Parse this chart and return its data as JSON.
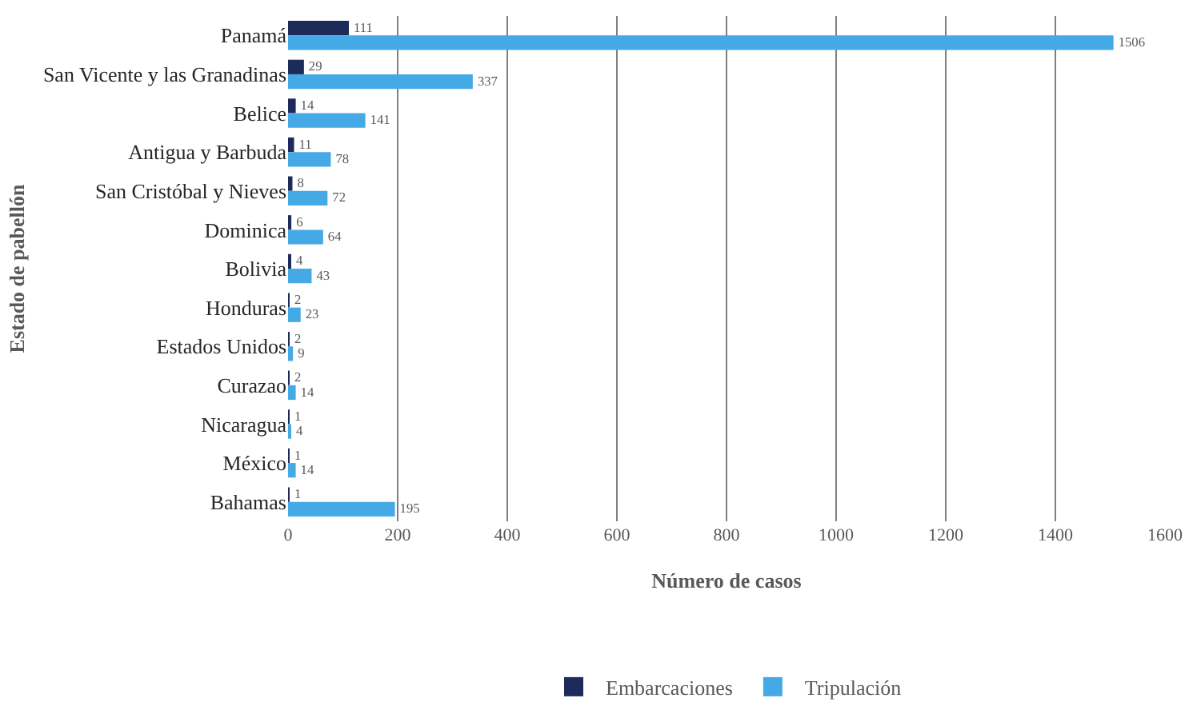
{
  "chart_data": {
    "type": "bar",
    "orientation": "horizontal",
    "xlabel": "Número de casos",
    "ylabel": "Estado de pabellón",
    "categories": [
      "Panamá",
      "San Vicente y las Granadinas",
      "Belice",
      "Antigua y Barbuda",
      "San Cristóbal y Nieves",
      "Dominica",
      "Bolivia",
      "Honduras",
      "Estados Unidos",
      "Curazao",
      "Nicaragua",
      "México",
      "Bahamas"
    ],
    "series": [
      {
        "name": "Embarcaciones",
        "color": "#1c2b5a",
        "values": [
          111,
          29,
          14,
          11,
          8,
          6,
          4,
          2,
          2,
          2,
          1,
          1,
          1
        ]
      },
      {
        "name": "Tripulación",
        "color": "#45a9e6",
        "values": [
          1506,
          337,
          141,
          78,
          72,
          64,
          43,
          23,
          9,
          14,
          4,
          14,
          195
        ]
      }
    ],
    "xlim": [
      0,
      1600
    ],
    "xticks": [
      0,
      200,
      400,
      600,
      800,
      1000,
      1200,
      1400,
      1600
    ],
    "grid": "x",
    "legend": "bottom",
    "data_labels": true
  }
}
